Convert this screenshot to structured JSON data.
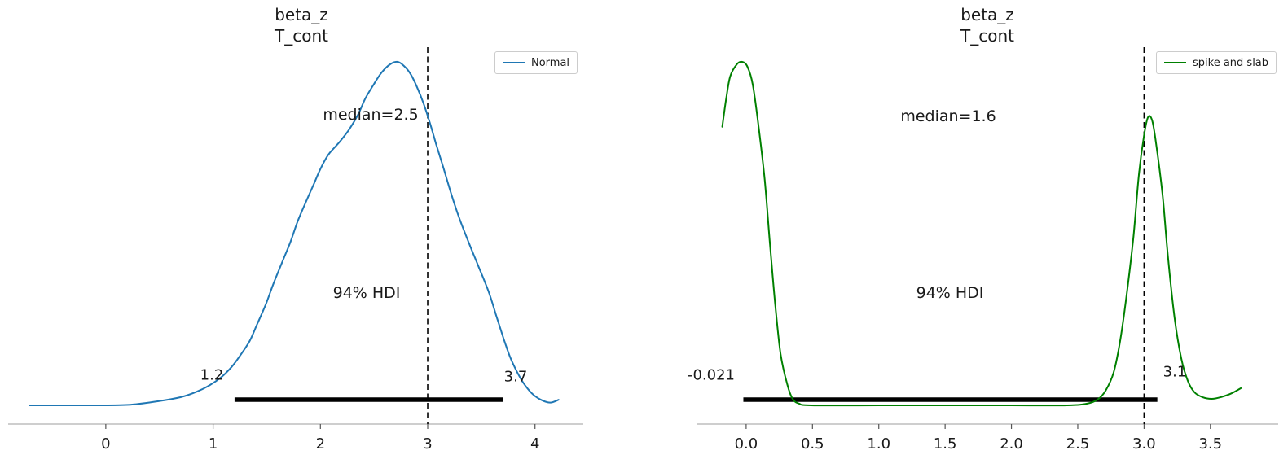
{
  "figure": {
    "background": "#ffffff",
    "axis_color": "#b0b0b0",
    "tick_color": "#555555",
    "text_color": "#1a1a1a",
    "ref_line_color": "#000000",
    "hdi_bar_color": "#000000"
  },
  "chart_data": [
    {
      "type": "line",
      "title_lines": [
        "beta_z",
        "T_cont"
      ],
      "legend": "Normal",
      "color": "#1f77b4",
      "median_label": "median=2.5",
      "median_value": 2.5,
      "hdi_text": "94% HDI",
      "hdi_interval": [
        1.2,
        3.7
      ],
      "hdi_labels": [
        "1.2",
        "3.7"
      ],
      "ref_line_x": 3,
      "xlim": [
        -0.91,
        4.45
      ],
      "grid": false,
      "legend_position": "upper right",
      "x_ticks": [
        {
          "v": 0,
          "label": "0"
        },
        {
          "v": 1,
          "label": "1"
        },
        {
          "v": 2,
          "label": "2"
        },
        {
          "v": 3,
          "label": "3"
        },
        {
          "v": 4,
          "label": "4"
        }
      ],
      "series": [
        {
          "name": "Normal",
          "points": [
            [
              -0.71,
              0.0
            ],
            [
              -0.46,
              0.0
            ],
            [
              -0.23,
              0.0
            ],
            [
              -0.08,
              0.0
            ],
            [
              0.23,
              0.002
            ],
            [
              0.49,
              0.012
            ],
            [
              0.7,
              0.024
            ],
            [
              0.85,
              0.04
            ],
            [
              0.97,
              0.059
            ],
            [
              1.08,
              0.083
            ],
            [
              1.17,
              0.111
            ],
            [
              1.25,
              0.144
            ],
            [
              1.34,
              0.187
            ],
            [
              1.41,
              0.236
            ],
            [
              1.49,
              0.293
            ],
            [
              1.56,
              0.352
            ],
            [
              1.64,
              0.414
            ],
            [
              1.72,
              0.475
            ],
            [
              1.79,
              0.537
            ],
            [
              1.87,
              0.596
            ],
            [
              1.94,
              0.645
            ],
            [
              2.0,
              0.688
            ],
            [
              2.07,
              0.728
            ],
            [
              2.13,
              0.75
            ],
            [
              2.19,
              0.771
            ],
            [
              2.27,
              0.804
            ],
            [
              2.35,
              0.846
            ],
            [
              2.42,
              0.894
            ],
            [
              2.5,
              0.936
            ],
            [
              2.57,
              0.969
            ],
            [
              2.65,
              0.993
            ],
            [
              2.72,
              1.0
            ],
            [
              2.78,
              0.988
            ],
            [
              2.84,
              0.965
            ],
            [
              2.9,
              0.927
            ],
            [
              2.96,
              0.88
            ],
            [
              3.02,
              0.823
            ],
            [
              3.08,
              0.759
            ],
            [
              3.15,
              0.688
            ],
            [
              3.22,
              0.615
            ],
            [
              3.29,
              0.549
            ],
            [
              3.39,
              0.468
            ],
            [
              3.47,
              0.407
            ],
            [
              3.57,
              0.329
            ],
            [
              3.64,
              0.26
            ],
            [
              3.71,
              0.192
            ],
            [
              3.77,
              0.139
            ],
            [
              3.83,
              0.099
            ],
            [
              3.89,
              0.066
            ],
            [
              3.97,
              0.035
            ],
            [
              4.05,
              0.017
            ],
            [
              4.14,
              0.008
            ],
            [
              4.22,
              0.016
            ]
          ]
        }
      ]
    },
    {
      "type": "line",
      "title_lines": [
        "beta_z",
        "T_cont"
      ],
      "legend": "spike and slab",
      "color": "#008000",
      "median_label": "median=1.6",
      "median_value": 1.6,
      "hdi_text": "94% HDI",
      "hdi_interval": [
        -0.021,
        3.1
      ],
      "hdi_labels": [
        "-0.021",
        "3.1"
      ],
      "ref_line_x": 3,
      "xlim": [
        -0.374,
        4.011
      ],
      "grid": false,
      "legend_position": "upper right",
      "x_ticks": [
        {
          "v": 0.0,
          "label": "0.0"
        },
        {
          "v": 0.5,
          "label": "0.5"
        },
        {
          "v": 1.0,
          "label": "1.0"
        },
        {
          "v": 1.5,
          "label": "1.5"
        },
        {
          "v": 2.0,
          "label": "2.0"
        },
        {
          "v": 2.5,
          "label": "2.5"
        },
        {
          "v": 3.0,
          "label": "3.0"
        },
        {
          "v": 3.5,
          "label": "3.5"
        }
      ],
      "series": [
        {
          "name": "spike and slab",
          "points": [
            [
              -0.18,
              0.811
            ],
            [
              -0.15,
              0.894
            ],
            [
              -0.12,
              0.958
            ],
            [
              -0.07,
              0.993
            ],
            [
              -0.03,
              1.0
            ],
            [
              0.01,
              0.986
            ],
            [
              0.05,
              0.934
            ],
            [
              0.09,
              0.823
            ],
            [
              0.14,
              0.657
            ],
            [
              0.18,
              0.468
            ],
            [
              0.22,
              0.291
            ],
            [
              0.26,
              0.149
            ],
            [
              0.31,
              0.061
            ],
            [
              0.35,
              0.019
            ],
            [
              0.4,
              0.005
            ],
            [
              0.49,
              0.0
            ],
            [
              1.0,
              0.0
            ],
            [
              1.5,
              0.0
            ],
            [
              2.0,
              0.0
            ],
            [
              2.42,
              0.0
            ],
            [
              2.57,
              0.005
            ],
            [
              2.65,
              0.017
            ],
            [
              2.71,
              0.043
            ],
            [
              2.77,
              0.095
            ],
            [
              2.82,
              0.189
            ],
            [
              2.87,
              0.326
            ],
            [
              2.92,
              0.492
            ],
            [
              2.96,
              0.669
            ],
            [
              3.0,
              0.787
            ],
            [
              3.03,
              0.839
            ],
            [
              3.06,
              0.83
            ],
            [
              3.09,
              0.764
            ],
            [
              3.14,
              0.61
            ],
            [
              3.18,
              0.433
            ],
            [
              3.23,
              0.255
            ],
            [
              3.28,
              0.137
            ],
            [
              3.33,
              0.071
            ],
            [
              3.38,
              0.038
            ],
            [
              3.44,
              0.024
            ],
            [
              3.51,
              0.019
            ],
            [
              3.58,
              0.024
            ],
            [
              3.66,
              0.035
            ],
            [
              3.73,
              0.05
            ]
          ]
        }
      ]
    }
  ]
}
